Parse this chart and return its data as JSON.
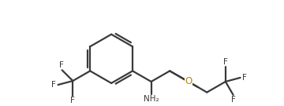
{
  "bg_color": "#ffffff",
  "bond_color": "#3a3a3a",
  "o_color": "#b8860b",
  "f_color": "#3a3a3a",
  "n_color": "#3a3a3a",
  "line_width": 1.6,
  "font_size": 7.5,
  "figsize": [
    3.6,
    1.35
  ],
  "dpi": 100,
  "xlim": [
    0,
    360
  ],
  "ylim": [
    0,
    135
  ]
}
